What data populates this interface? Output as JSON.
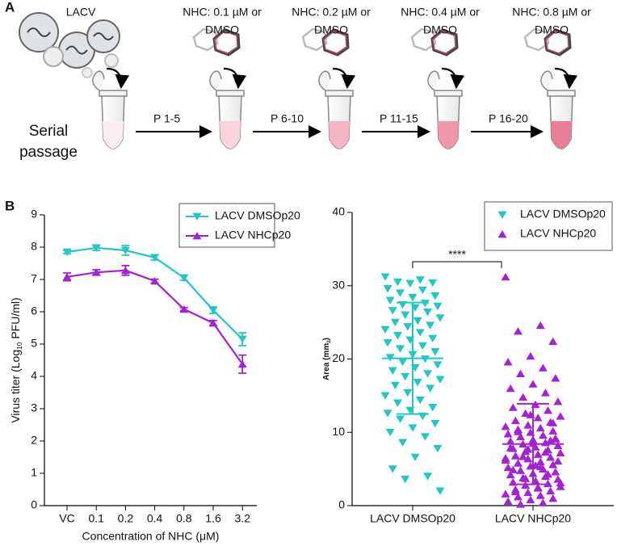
{
  "panel_a": {
    "label": "A",
    "virus": "LACV",
    "start": [
      "Serial",
      "passage"
    ],
    "treatments": [
      [
        "NHC: 0.1 µM or",
        "DMSO"
      ],
      [
        "NHC: 0.2 µM or",
        "DMSO"
      ],
      [
        "NHC: 0.4 µM or",
        "DMSO"
      ],
      [
        "NHC: 0.8 µM or",
        "DMSO"
      ]
    ],
    "passages": [
      "P 1-5",
      "P 6-10",
      "P 11-15",
      "P 16-20"
    ]
  },
  "panel_b_label": "B",
  "chart_data": [
    {
      "type": "line",
      "xlabel": "Concentration of NHC (μM)",
      "ylabel": [
        "Virus titer (Log",
        "10",
        " PFU/ml)"
      ],
      "categories": [
        "VC",
        "0.1",
        "0.2",
        "0.4",
        "0.8",
        "1.6",
        "3.2"
      ],
      "ylim": [
        0,
        9
      ],
      "yticks": [
        0,
        1,
        2,
        3,
        4,
        5,
        6,
        7,
        8,
        9
      ],
      "legend": "upper right",
      "series": [
        {
          "name": "LACV DMSOp20",
          "color": "#22c7c4",
          "marker": "down",
          "values": [
            7.85,
            7.98,
            7.9,
            7.68,
            7.05,
            6.05,
            5.15
          ],
          "errors": [
            0.05,
            0.08,
            0.15,
            0.08,
            0.08,
            0.1,
            0.2
          ]
        },
        {
          "name": "LACV NHCp20",
          "color": "#a322d4",
          "marker": "up",
          "values": [
            7.08,
            7.22,
            7.28,
            6.95,
            6.08,
            5.65,
            4.38
          ],
          "errors": [
            0.12,
            0.08,
            0.15,
            0.06,
            0.05,
            0.08,
            0.28
          ]
        }
      ]
    },
    {
      "type": "strip",
      "ylabel": [
        "Area (mm",
        "2",
        ")"
      ],
      "categories": [
        "LACV DMSOp20",
        "LACV NHCp20"
      ],
      "ylim": [
        0,
        40
      ],
      "yticks": [
        0,
        10,
        20,
        30,
        40
      ],
      "annotation": "****",
      "legend": "upper right",
      "series": [
        {
          "name": "LACV DMSOp20",
          "color": "#22c7c4",
          "marker": "down",
          "mean": 20.1,
          "sd": 7.6,
          "values": [
            31.2,
            30.8,
            30.5,
            30.4,
            30.3,
            29.6,
            29.4,
            29.0,
            28.6,
            28.4,
            28.0,
            27.6,
            27.4,
            27.2,
            27.0,
            26.6,
            26.4,
            26.0,
            25.6,
            25.2,
            25.0,
            24.6,
            24.4,
            24.0,
            23.6,
            23.2,
            22.8,
            22.6,
            22.2,
            21.8,
            21.4,
            21.0,
            20.6,
            20.2,
            20.0,
            19.6,
            19.2,
            18.8,
            18.4,
            18.0,
            17.6,
            17.2,
            16.8,
            16.4,
            16.0,
            15.4,
            15.0,
            14.4,
            14.0,
            13.4,
            13.0,
            12.6,
            12.2,
            11.8,
            11.2,
            10.6,
            10.0,
            9.4,
            8.6,
            7.8,
            6.6,
            5.0,
            4.0,
            3.6,
            2.0
          ]
        },
        {
          "name": "LACV NHCp20",
          "color": "#a322d4",
          "marker": "up",
          "mean": 8.4,
          "sd": 5.5,
          "values": [
            31.2,
            24.6,
            23.8,
            22.4,
            20.4,
            19.6,
            18.8,
            18.0,
            17.4,
            16.6,
            16.0,
            15.4,
            14.8,
            14.2,
            13.8,
            13.4,
            13.0,
            12.6,
            12.2,
            12.0,
            11.6,
            11.4,
            11.0,
            10.8,
            10.6,
            10.4,
            10.2,
            10.0,
            9.8,
            9.6,
            9.4,
            9.2,
            9.0,
            8.8,
            8.6,
            8.4,
            8.2,
            8.0,
            7.8,
            7.6,
            7.4,
            7.2,
            7.0,
            6.8,
            6.6,
            6.4,
            6.2,
            6.0,
            5.8,
            5.6,
            5.4,
            5.2,
            5.0,
            4.8,
            4.6,
            4.4,
            4.2,
            4.0,
            3.8,
            3.6,
            3.4,
            3.2,
            3.0,
            2.8,
            2.6,
            2.4,
            2.2,
            2.0,
            1.8,
            1.6,
            1.4,
            1.2,
            1.0,
            0.8,
            0.6,
            0.4,
            0.2,
            9.1,
            8.5,
            7.9,
            7.3,
            6.7,
            6.1,
            5.5,
            4.9,
            4.3,
            3.7,
            3.1,
            2.5,
            1.9,
            8.9,
            7.7,
            6.5,
            5.3,
            10.1,
            11.3,
            12.4
          ]
        }
      ]
    }
  ]
}
